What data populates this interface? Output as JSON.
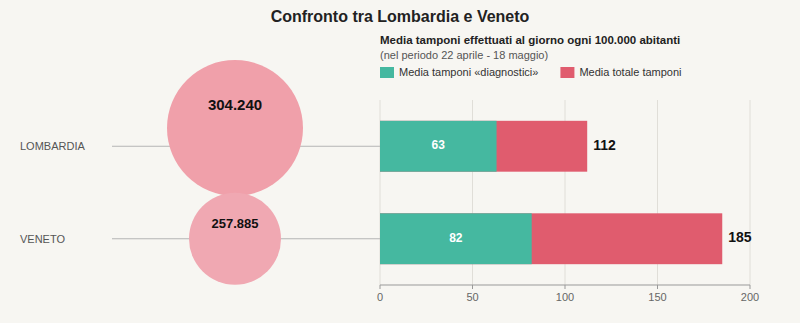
{
  "chart_data": {
    "type": "bar",
    "orientation": "horizontal",
    "stacked": false,
    "title": "Confronto tra Lombardia e Veneto",
    "subtitle": [
      "Media tamponi effettuati al giorno ogni 100.000 abitanti",
      "(nel periodo 22 aprile -  18 maggio)"
    ],
    "categories": [
      "LOMBARDIA",
      "VENETO"
    ],
    "series": [
      {
        "name": "Media tamponi «diagnostici»",
        "color": "#45b8a0",
        "values": [
          63,
          82
        ]
      },
      {
        "name": "Media totale tamponi",
        "color": "#e05c6e",
        "values": [
          112,
          185
        ]
      }
    ],
    "annotations": [
      "304.240",
      "257.885"
    ],
    "xlim": [
      0,
      200
    ],
    "xticks": [
      0,
      50,
      100,
      150,
      200
    ],
    "grid": true,
    "legend": "top",
    "data_labels": true
  }
}
